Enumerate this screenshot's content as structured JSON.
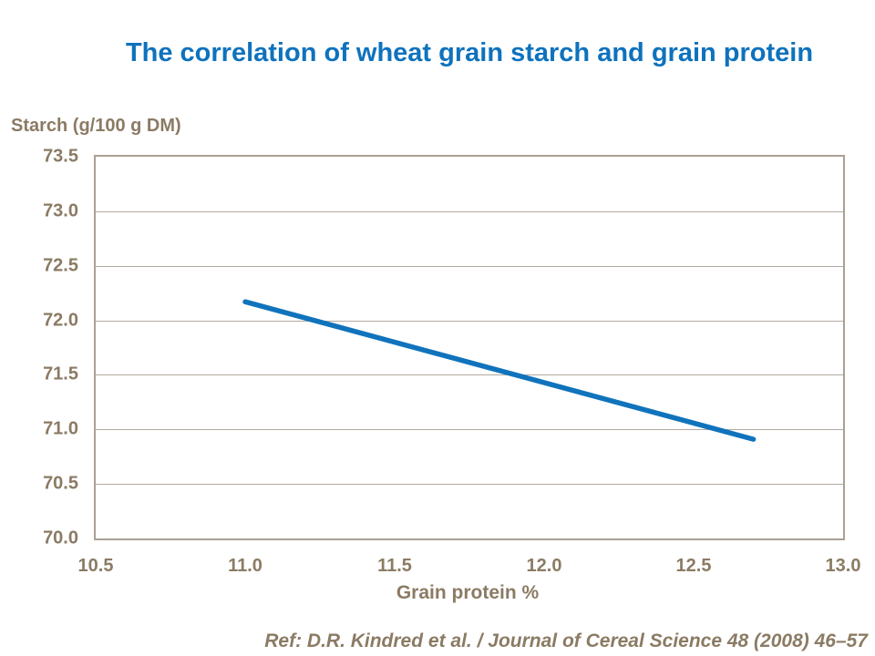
{
  "colors": {
    "accent_blue": "#0E72BD",
    "line": "#1073BC",
    "axis_text": "#8B7B64",
    "gridline": "#B3AA9F",
    "plot_border": "#ABA095",
    "background": "#FFFFFF"
  },
  "chart_data": {
    "type": "line",
    "title": "The correlation of wheat grain starch and grain protein",
    "xlabel": "Grain protein %",
    "ylabel": "Starch (g/100 g DM)",
    "xlim": [
      10.5,
      13.0
    ],
    "ylim": [
      70.0,
      73.5
    ],
    "x_ticks": [
      "10.5",
      "11.0",
      "11.5",
      "12.0",
      "12.5",
      "13.0"
    ],
    "y_ticks": [
      "73.5",
      "73.0",
      "72.5",
      "72.0",
      "71.5",
      "71.0",
      "70.5",
      "70.0"
    ],
    "grid": "horizontal",
    "legend": "none",
    "markers": "none",
    "series": [
      {
        "name": "starch-vs-protein-trend",
        "x": [
          11.0,
          12.7
        ],
        "y": [
          72.17,
          70.91
        ]
      }
    ]
  },
  "footer": {
    "reference": "Ref: D.R. Kindred et al. / Journal of Cereal Science 48 (2008) 46–57"
  }
}
